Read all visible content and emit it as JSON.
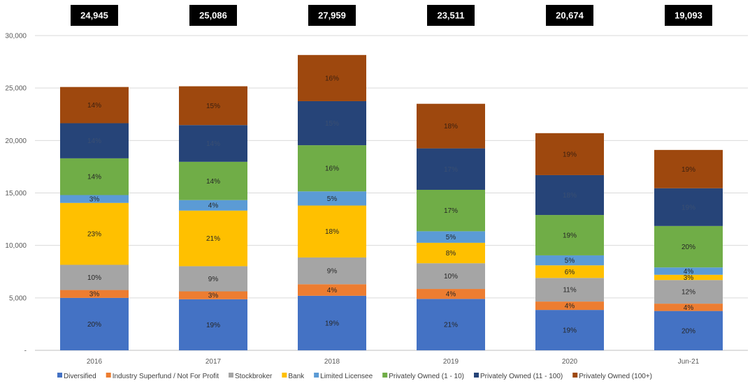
{
  "chart_data": {
    "type": "bar",
    "stacked": true,
    "categories": [
      "2016",
      "2017",
      "2018",
      "2019",
      "2020",
      "Jun-21"
    ],
    "totals": [
      "24,945",
      "25,086",
      "27,959",
      "23,511",
      "20,674",
      "19,093"
    ],
    "ylim": [
      0,
      30000
    ],
    "yticks": [
      0,
      5000,
      10000,
      15000,
      20000,
      25000,
      30000
    ],
    "ytick_labels": [
      "-",
      "5,000",
      "10,000",
      "15,000",
      "20,000",
      "25,000",
      "30,000"
    ],
    "grid": true,
    "legend_position": "bottom",
    "series": [
      {
        "name": "Diversified",
        "color": "#4472C4",
        "label_color": "#262626",
        "values": [
          5000,
          4870,
          5200,
          4900,
          3850,
          3750
        ],
        "labels": [
          "20%",
          "19%",
          "19%",
          "21%",
          "19%",
          "20%"
        ]
      },
      {
        "name": "Industry Superfund / Not For Profit",
        "color": "#ED7D31",
        "label_color": "#262626",
        "values": [
          750,
          750,
          1100,
          950,
          800,
          700
        ],
        "labels": [
          "3%",
          "3%",
          "4%",
          "4%",
          "4%",
          "4%"
        ]
      },
      {
        "name": "Stockbroker",
        "color": "#A5A5A5",
        "label_color": "#262626",
        "values": [
          2400,
          2400,
          2550,
          2450,
          2250,
          2250
        ],
        "labels": [
          "10%",
          "9%",
          "9%",
          "10%",
          "11%",
          "12%"
        ]
      },
      {
        "name": "Bank",
        "color": "#FFC000",
        "label_color": "#262626",
        "values": [
          5900,
          5300,
          4950,
          1950,
          1200,
          500
        ],
        "labels": [
          "23%",
          "21%",
          "18%",
          "8%",
          "6%",
          "3%"
        ]
      },
      {
        "name": "Limited Licensee",
        "color": "#5B9BD5",
        "label_color": "#262626",
        "values": [
          750,
          1000,
          1350,
          1100,
          950,
          700
        ],
        "labels": [
          "3%",
          "4%",
          "5%",
          "5%",
          "5%",
          "4%"
        ]
      },
      {
        "name": "Privately Owned (1 - 10)",
        "color": "#70AD47",
        "label_color": "#262626",
        "values": [
          3500,
          3650,
          4400,
          3950,
          3850,
          3950
        ],
        "labels": [
          "14%",
          "14%",
          "16%",
          "17%",
          "19%",
          "20%"
        ]
      },
      {
        "name": "Privately Owned (11 - 100)",
        "color": "#264478",
        "label_color": "#3a4f72",
        "values": [
          3350,
          3500,
          4200,
          3950,
          3800,
          3600
        ],
        "labels": [
          "14%",
          "14%",
          "15%",
          "17%",
          "18%",
          "19%"
        ]
      },
      {
        "name": "Privately Owned (100+)",
        "color": "#9E480E",
        "label_color": "#3d2010",
        "values": [
          3450,
          3700,
          4400,
          4250,
          4000,
          3650
        ],
        "labels": [
          "14%",
          "15%",
          "16%",
          "18%",
          "19%",
          "19%"
        ]
      }
    ]
  }
}
